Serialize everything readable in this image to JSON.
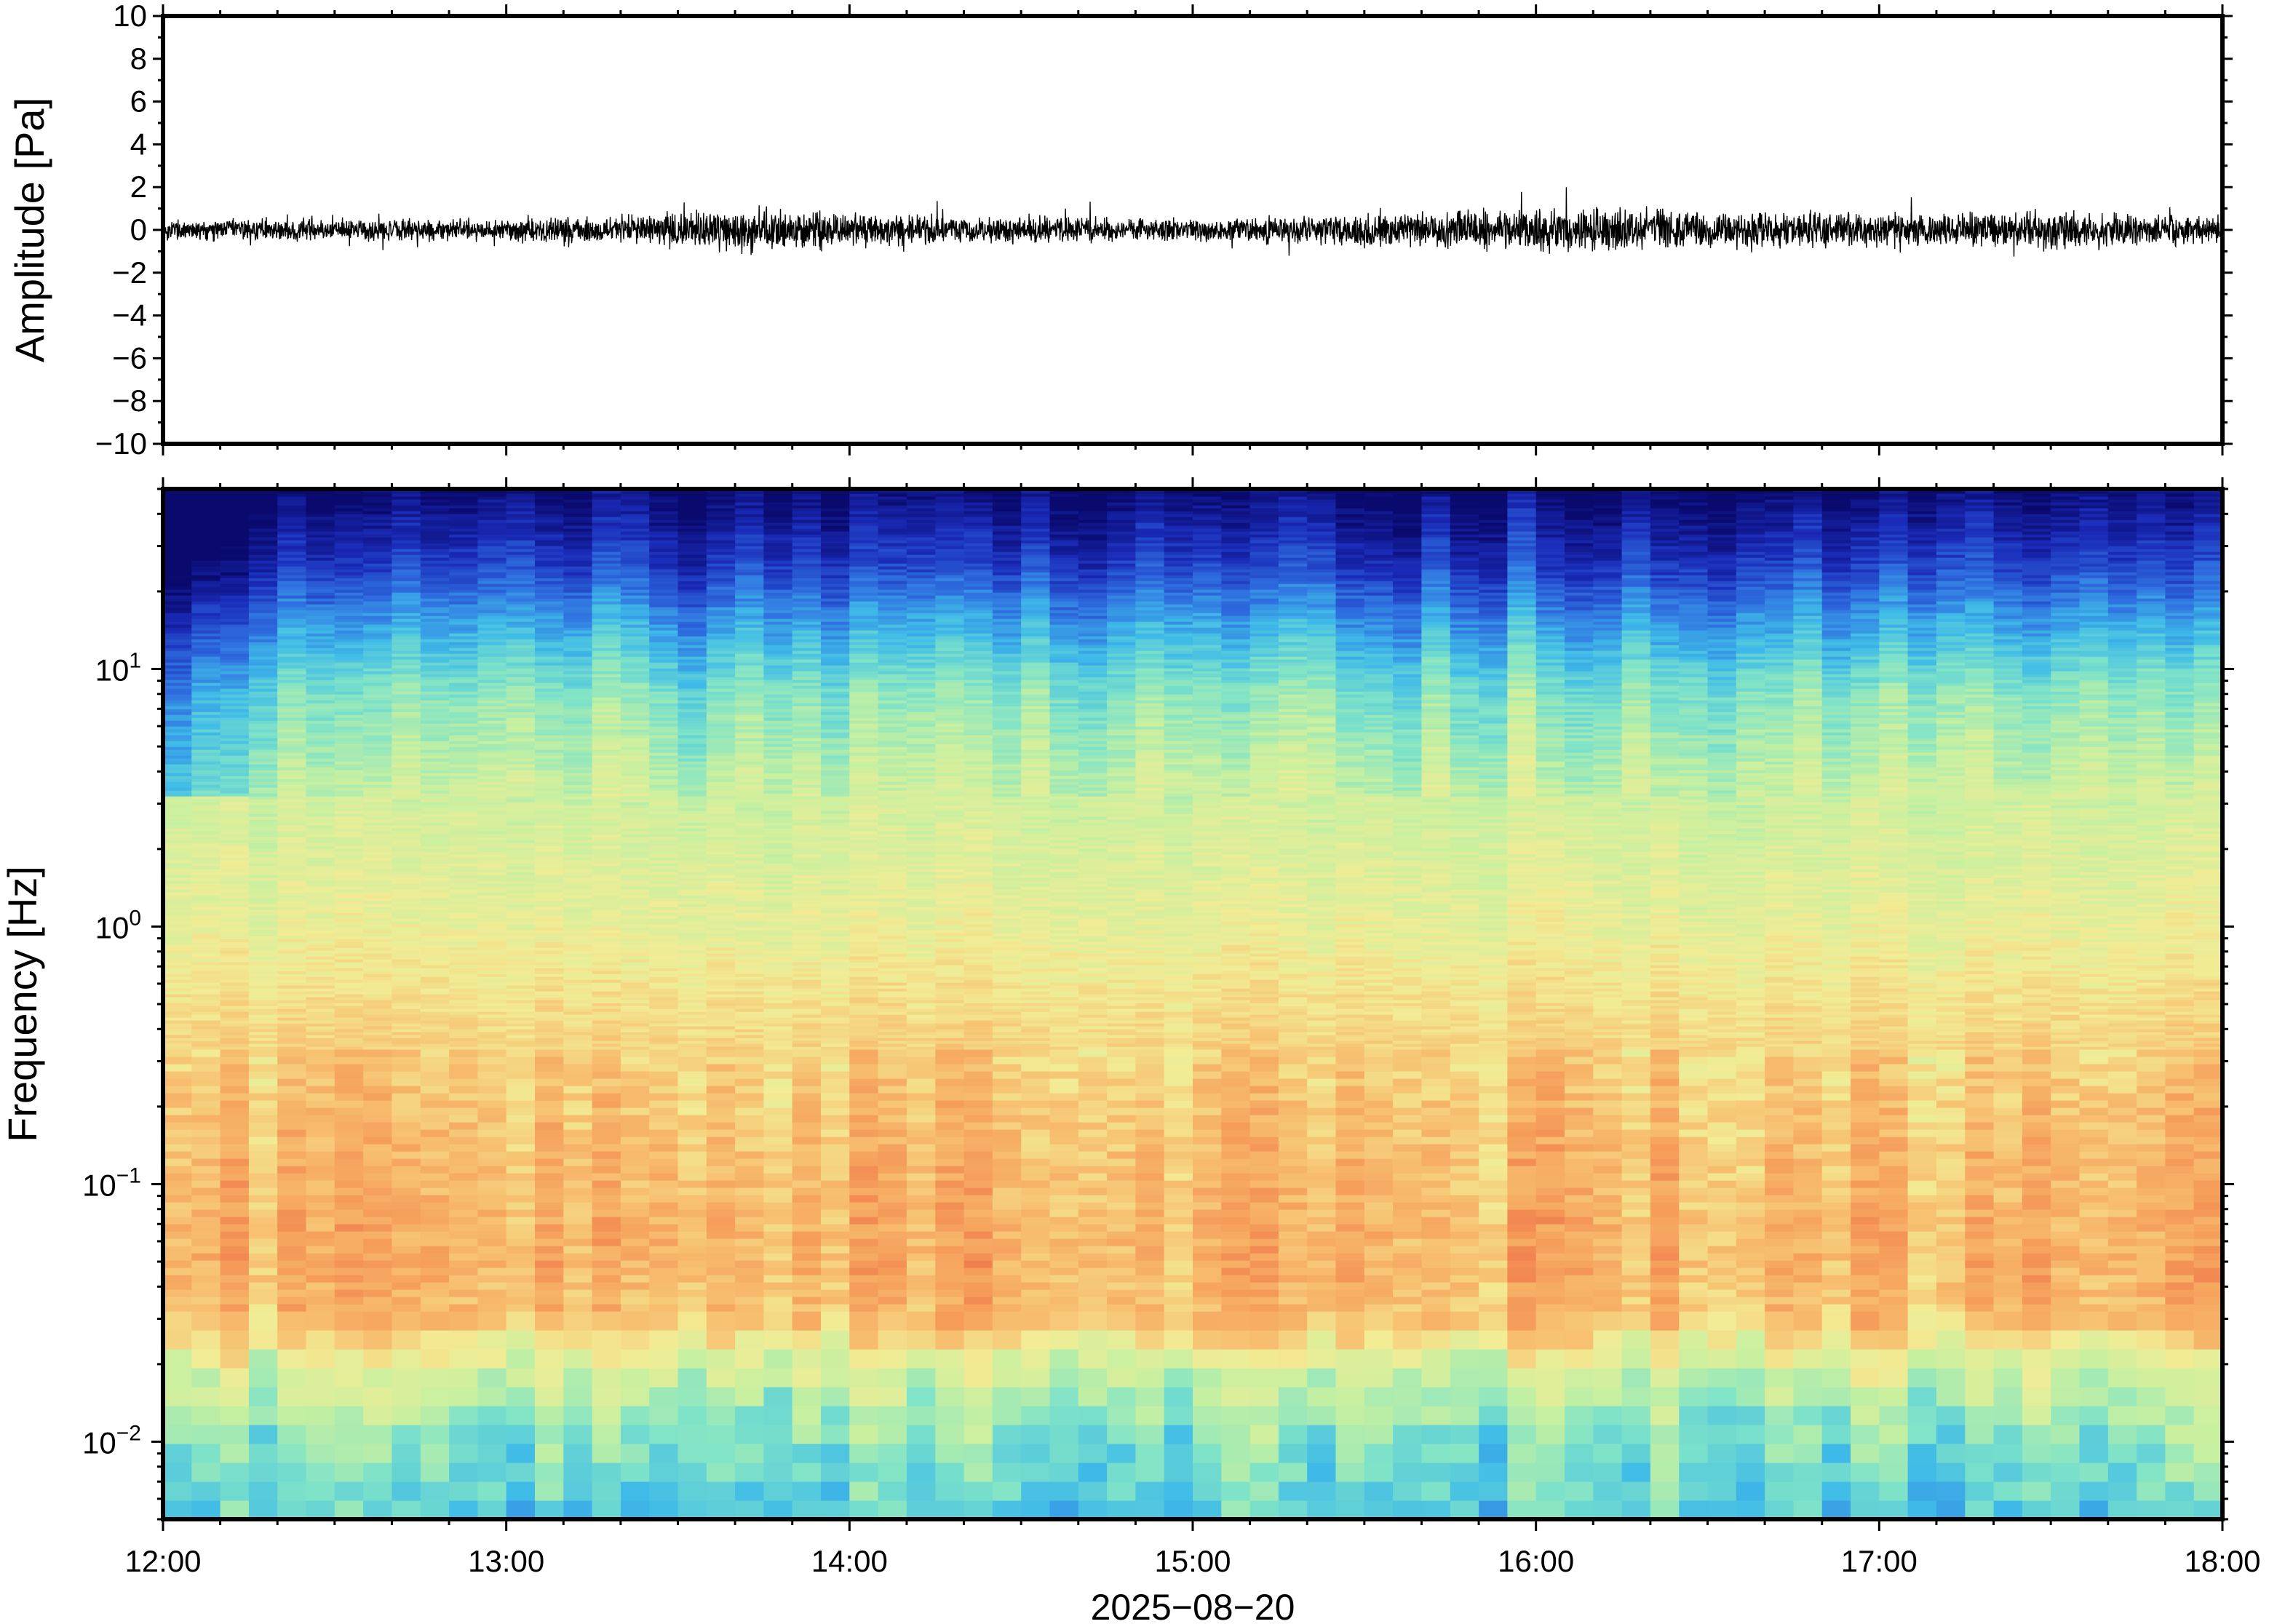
{
  "chart_data": [
    {
      "type": "line",
      "panel": "waveform",
      "ylabel": "Amplitude [Pa]",
      "ylim": [
        -10,
        10
      ],
      "yticks": [
        10,
        8,
        6,
        4,
        2,
        0,
        -2,
        -4,
        -6,
        -8,
        -10
      ],
      "ytick_labels": [
        "10",
        "8",
        "6",
        "4",
        "2",
        "0",
        "−2",
        "−4",
        "−6",
        "−8",
        "−10"
      ],
      "xlim": [
        "12:00",
        "18:00"
      ],
      "envelope": {
        "description_times": [
          "12:00",
          "12:30",
          "13:00",
          "13:30",
          "13:40",
          "14:00",
          "14:30",
          "15:00",
          "15:30",
          "16:00",
          "16:20",
          "16:30",
          "17:00",
          "17:30",
          "18:00"
        ],
        "amplitude": [
          0.4,
          0.4,
          0.4,
          0.6,
          0.9,
          0.6,
          0.5,
          0.4,
          0.6,
          0.8,
          0.8,
          0.7,
          0.6,
          0.7,
          0.5
        ]
      },
      "line_color": "#000000"
    },
    {
      "type": "heatmap",
      "panel": "spectrogram",
      "ylabel": "Frequency [Hz]",
      "yscale": "log",
      "ylim": [
        0.005,
        50
      ],
      "yticks": [
        0.01,
        0.1,
        1,
        10
      ],
      "ytick_labels": [
        {
          "base": "10",
          "exp": "−2"
        },
        {
          "base": "10",
          "exp": "−1"
        },
        {
          "base": "10",
          "exp": "0"
        },
        {
          "base": "10",
          "exp": "1"
        }
      ],
      "xlabel": "2025−08−20",
      "xticks": [
        "12:00",
        "13:00",
        "14:00",
        "15:00",
        "16:00",
        "17:00",
        "18:00"
      ],
      "xlim": [
        "12:00",
        "18:00"
      ],
      "colormap": [
        "#0a0a6e",
        "#1a2bb8",
        "#2f6fe0",
        "#3fbbe8",
        "#7fe3c8",
        "#c7f0a0",
        "#f2ec95",
        "#f7c070",
        "#f59a58",
        "#ec6548"
      ],
      "relative_power_profile": {
        "frequency_hz": [
          0.005,
          0.01,
          0.02,
          0.03,
          0.05,
          0.1,
          0.2,
          0.5,
          1,
          3,
          8,
          15,
          25,
          40,
          50
        ],
        "level_0_to_1": [
          0.38,
          0.45,
          0.6,
          0.78,
          0.82,
          0.8,
          0.77,
          0.7,
          0.64,
          0.58,
          0.46,
          0.3,
          0.15,
          0.05,
          0.0
        ]
      }
    }
  ]
}
